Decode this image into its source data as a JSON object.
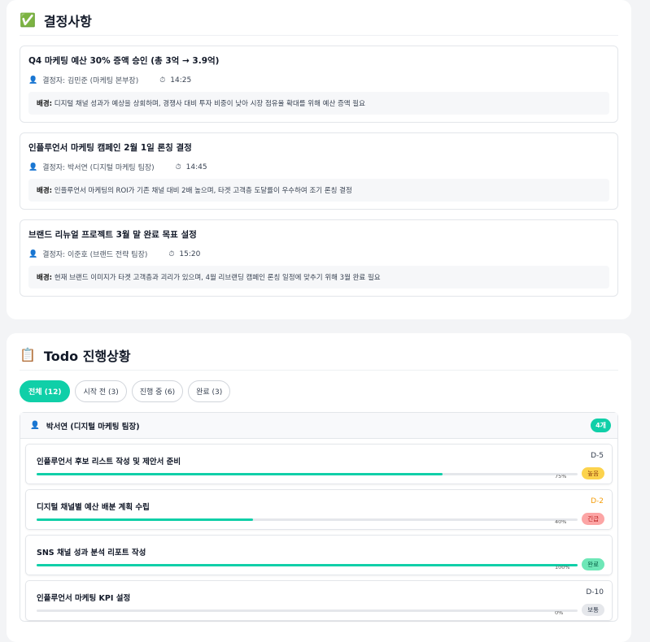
{
  "decisions": {
    "title": "결정사항",
    "icon": "check-box-icon",
    "items": [
      {
        "title": "Q4 마케팅 예산 30% 증액 승인 (총 3억 → 3.9억)",
        "by": "결정자: 김민준 (마케팅 본부장)",
        "time": "14:25",
        "bg_label": "배경:",
        "bg": "디지털 채널 성과가 예상을 상회하며, 경쟁사 대비 투자 비중이 낮아 시장 점유율 확대를 위해 예산 증액 필요"
      },
      {
        "title": "인플루언서 마케팅 캠페인 2월 1일 론칭 결정",
        "by": "결정자: 박서연 (디지털 마케팅 팀장)",
        "time": "14:45",
        "bg_label": "배경:",
        "bg": "인플루언서 마케팅의 ROI가 기존 채널 대비 2배 높으며, 타겟 고객층 도달률이 우수하여 조기 론칭 결정"
      },
      {
        "title": "브랜드 리뉴얼 프로젝트 3월 말 완료 목표 설정",
        "by": "결정자: 이준호 (브랜드 전략 팀장)",
        "time": "15:20",
        "bg_label": "배경:",
        "bg": "현재 브랜드 이미지가 타겟 고객층과 괴리가 있으며, 4월 리브랜딩 캠페인 론칭 일정에 맞추기 위해 3월 완료 필요"
      }
    ]
  },
  "todo": {
    "title": "Todo 진행상황",
    "icon": "clipboard-icon",
    "tabs": [
      {
        "label": "전체 (12)",
        "active": true
      },
      {
        "label": "시작 전 (3)"
      },
      {
        "label": "진행 중 (6)"
      },
      {
        "label": "완료 (3)"
      }
    ],
    "group": {
      "owner": "박서연 (디지털 마케팅 팀장)",
      "count": "4개",
      "items": [
        {
          "title": "인플루언서 후보 리스트 작성 및 제안서 준비",
          "due": "D-5",
          "due_color": "#374151",
          "progress": 75,
          "pct": "75%",
          "priority": "높음",
          "pbg": "#fcd34d",
          "pfg": "#92400e"
        },
        {
          "title": "디지털 채널별 예산 배분 계획 수립",
          "due": "D-2",
          "due_color": "#f59e0b",
          "progress": 40,
          "pct": "40%",
          "priority": "긴급",
          "pbg": "#fca5a5",
          "pfg": "#b91c1c"
        },
        {
          "title": "SNS 채널 성과 분석 리포트 작성",
          "due": "",
          "due_color": "#374151",
          "progress": 100,
          "pct": "100%",
          "priority": "완료",
          "pbg": "#6ee7b7",
          "pfg": "#065f46"
        },
        {
          "title": "인플루언서 마케팅 KPI 설정",
          "due": "D-10",
          "due_color": "#374151",
          "progress": 0,
          "pct": "0%",
          "priority": "보통",
          "pbg": "#e5e7eb",
          "pfg": "#374151"
        }
      ]
    }
  }
}
